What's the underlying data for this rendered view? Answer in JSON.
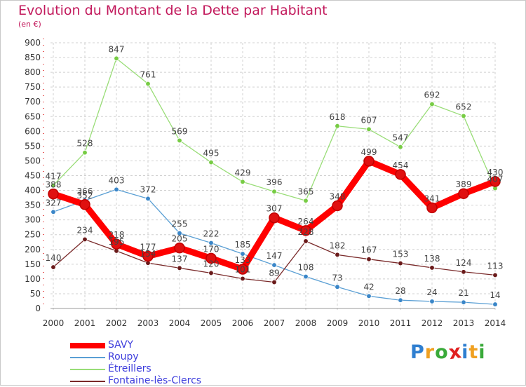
{
  "chart_data": {
    "type": "line",
    "title": "Evolution du Montant de la Dette par Habitant",
    "subtitle": "(en €)",
    "x": [
      "2000",
      "2001",
      "2002",
      "2003",
      "2004",
      "2005",
      "2006",
      "2007",
      "2008",
      "2009",
      "2010",
      "2011",
      "2012",
      "2013",
      "2014"
    ],
    "ylim": [
      0,
      900
    ],
    "yticks": [
      0,
      50,
      100,
      150,
      200,
      250,
      300,
      350,
      400,
      450,
      500,
      550,
      600,
      650,
      700,
      750,
      800,
      850,
      900
    ],
    "grid": true,
    "legend_position": "bottom-left",
    "series": [
      {
        "name": "SAVY",
        "color": "#ff0000",
        "marker_color": "#e01010",
        "values": [
          388,
          352,
          218,
          177,
          205,
          170,
          133,
          307,
          264,
          348,
          499,
          454,
          341,
          389,
          430
        ]
      },
      {
        "name": "Roupy",
        "color": "#5a9fd4",
        "marker_color": "#3a86c8",
        "values": [
          327,
          366,
          403,
          372,
          255,
          222,
          185,
          147,
          108,
          73,
          42,
          28,
          24,
          21,
          14
        ]
      },
      {
        "name": "Étreillers",
        "color": "#99dd77",
        "marker_color": "#77cc44",
        "values": [
          417,
          528,
          847,
          761,
          569,
          495,
          429,
          396,
          365,
          618,
          607,
          547,
          692,
          652,
          407
        ]
      },
      {
        "name": "Fontaine-lès-Clercs",
        "color": "#7a2a2a",
        "marker_color": "#6a1a1a",
        "values": [
          140,
          234,
          195,
          154,
          137,
          120,
          101,
          89,
          228,
          182,
          167,
          153,
          138,
          124,
          113
        ]
      }
    ]
  },
  "brand": {
    "letters": [
      "P",
      "r",
      "o",
      "x",
      "i",
      "t",
      "i"
    ],
    "colors": [
      "#2f7fd0",
      "#f0a020",
      "#3aaa3a",
      "#e02020",
      "#2f7fd0",
      "#f0a020",
      "#3aaa3a"
    ]
  }
}
